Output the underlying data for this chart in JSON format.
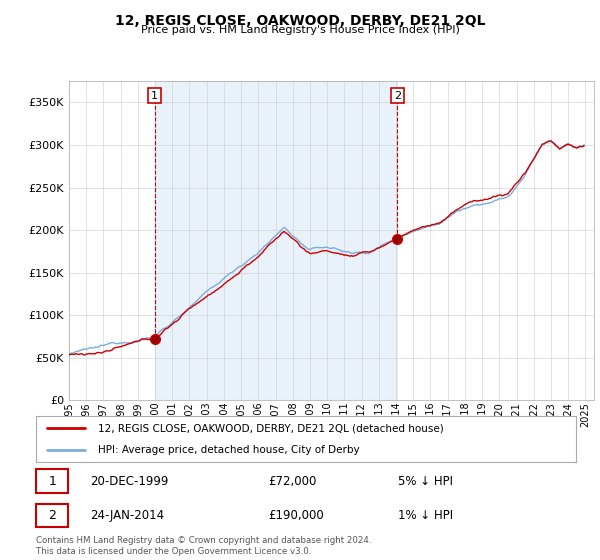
{
  "title": "12, REGIS CLOSE, OAKWOOD, DERBY, DE21 2QL",
  "subtitle": "Price paid vs. HM Land Registry's House Price Index (HPI)",
  "ylabel_ticks": [
    "£0",
    "£50K",
    "£100K",
    "£150K",
    "£200K",
    "£250K",
    "£300K",
    "£350K"
  ],
  "ytick_values": [
    0,
    50000,
    100000,
    150000,
    200000,
    250000,
    300000,
    350000
  ],
  "ylim": [
    0,
    375000
  ],
  "xlim_start": 1995.0,
  "xlim_end": 2025.5,
  "sale1_year": 1999.97,
  "sale1_price": 72000,
  "sale2_year": 2014.07,
  "sale2_price": 190000,
  "legend_line1": "12, REGIS CLOSE, OAKWOOD, DERBY, DE21 2QL (detached house)",
  "legend_line2": "HPI: Average price, detached house, City of Derby",
  "footnote": "Contains HM Land Registry data © Crown copyright and database right 2024.\nThis data is licensed under the Open Government Licence v3.0.",
  "line_color_price": "#cc0000",
  "line_color_hpi": "#7aaddb",
  "fill_color": "#ddeeff",
  "background_color": "#ffffff",
  "grid_color": "#cccccc"
}
